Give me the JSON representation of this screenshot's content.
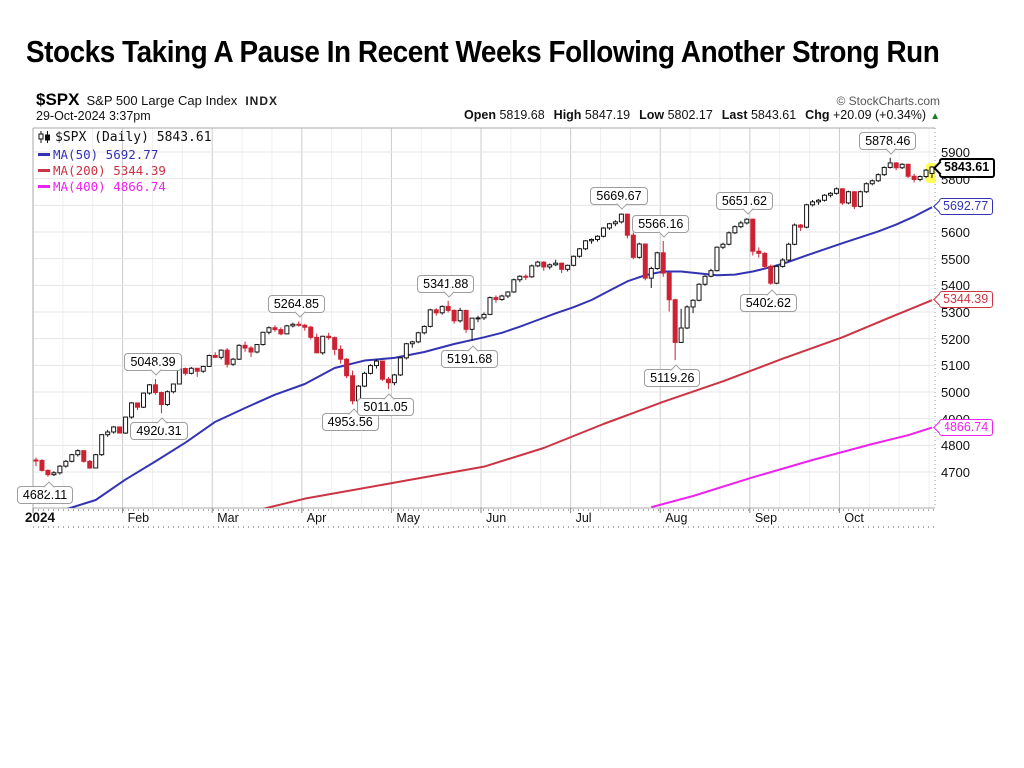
{
  "slide": {
    "title": "Stocks Taking A Pause In Recent Weeks Following Another Strong Run"
  },
  "chart": {
    "symbol": "$SPX",
    "name": "S&P 500 Large Cap Index",
    "exchange": "INDX",
    "credit": "© StockCharts.com",
    "datetime": "29-Oct-2024 3:37pm",
    "quote": [
      {
        "label": "Open",
        "value": "5819.68"
      },
      {
        "label": "High",
        "value": "5847.19"
      },
      {
        "label": "Low",
        "value": "5802.17"
      },
      {
        "label": "Last",
        "value": "5843.61"
      },
      {
        "label": "Chg",
        "value": "+20.09 (+0.34%)"
      }
    ],
    "change_arrow": "▲",
    "change_color": "#1e7a1e",
    "legend": {
      "main": "$SPX (Daily) 5843.61"
    }
  },
  "chart_data": {
    "type": "candlestick",
    "title": "$SPX (Daily)",
    "last": 5843.61,
    "ylim": [
      4565,
      5990
    ],
    "y_ticks": [
      5900,
      5800,
      5700,
      5600,
      5500,
      5400,
      5300,
      5200,
      5100,
      5000,
      4900,
      4800,
      4700
    ],
    "x_ticks": [
      {
        "label": "2024",
        "index": 0,
        "year": true
      },
      {
        "label": "Feb",
        "index": 15
      },
      {
        "label": "Mar",
        "index": 30
      },
      {
        "label": "Apr",
        "index": 45
      },
      {
        "label": "May",
        "index": 60
      },
      {
        "label": "Jun",
        "index": 75
      },
      {
        "label": "Jul",
        "index": 90
      },
      {
        "label": "Aug",
        "index": 105
      },
      {
        "label": "Sep",
        "index": 120
      },
      {
        "label": "Oct",
        "index": 135
      }
    ],
    "candles": [
      [
        4745,
        4754,
        4722,
        4743
      ],
      [
        4743,
        4748,
        4702,
        4706
      ],
      [
        4706,
        4710,
        4682.11,
        4690
      ],
      [
        4690,
        4703,
        4685,
        4697
      ],
      [
        4697,
        4726,
        4690,
        4722
      ],
      [
        4722,
        4745,
        4716,
        4740
      ],
      [
        4740,
        4768,
        4736,
        4765
      ],
      [
        4765,
        4785,
        4758,
        4780
      ],
      [
        4780,
        4782,
        4735,
        4740
      ],
      [
        4740,
        4745,
        4712,
        4715
      ],
      [
        4715,
        4768,
        4714,
        4765
      ],
      [
        4765,
        4842,
        4760,
        4840
      ],
      [
        4840,
        4858,
        4832,
        4850
      ],
      [
        4850,
        4872,
        4844,
        4869
      ],
      [
        4869,
        4870,
        4845,
        4846
      ],
      [
        4846,
        4908,
        4843,
        4906
      ],
      [
        4906,
        4962,
        4900,
        4959
      ],
      [
        4959,
        4960,
        4932,
        4943
      ],
      [
        4943,
        4998,
        4940,
        4996
      ],
      [
        4996,
        5030,
        4990,
        5027
      ],
      [
        5027,
        5048.39,
        4990,
        4998
      ],
      [
        4998,
        5002,
        4920.31,
        4953
      ],
      [
        4953,
        5006,
        4948,
        5001
      ],
      [
        5001,
        5032,
        4995,
        5030
      ],
      [
        5030,
        5090,
        5028,
        5088
      ],
      [
        5088,
        5092,
        5062,
        5070
      ],
      [
        5070,
        5094,
        5066,
        5089
      ],
      [
        5089,
        5090,
        5057,
        5078
      ],
      [
        5078,
        5098,
        5072,
        5096
      ],
      [
        5096,
        5140,
        5094,
        5137
      ],
      [
        5137,
        5149,
        5127,
        5130
      ],
      [
        5130,
        5160,
        5122,
        5157
      ],
      [
        5157,
        5165,
        5092,
        5104
      ],
      [
        5104,
        5128,
        5098,
        5123
      ],
      [
        5123,
        5179,
        5120,
        5175
      ],
      [
        5175,
        5189,
        5151,
        5165
      ],
      [
        5165,
        5172,
        5131,
        5150
      ],
      [
        5150,
        5180,
        5145,
        5178
      ],
      [
        5178,
        5226,
        5174,
        5224
      ],
      [
        5224,
        5246,
        5216,
        5241
      ],
      [
        5241,
        5250,
        5226,
        5234
      ],
      [
        5234,
        5242,
        5213,
        5218
      ],
      [
        5218,
        5252,
        5216,
        5248
      ],
      [
        5248,
        5260,
        5242,
        5254
      ],
      [
        5254,
        5264.85,
        5245,
        5250
      ],
      [
        5250,
        5256,
        5230,
        5243
      ],
      [
        5243,
        5248,
        5197,
        5205
      ],
      [
        5205,
        5219,
        5146,
        5147
      ],
      [
        5147,
        5211,
        5140,
        5209
      ],
      [
        5209,
        5222,
        5196,
        5204
      ],
      [
        5204,
        5208,
        5138,
        5160
      ],
      [
        5160,
        5175,
        5107,
        5123
      ],
      [
        5123,
        5127,
        5052,
        5061
      ],
      [
        5061,
        5080,
        4953.56,
        4967
      ],
      [
        4967,
        5026,
        4960,
        5022
      ],
      [
        5022,
        5076,
        5018,
        5070
      ],
      [
        5070,
        5104,
        5066,
        5099
      ],
      [
        5099,
        5123,
        5088,
        5116
      ],
      [
        5116,
        5118,
        5042,
        5048
      ],
      [
        5048,
        5056,
        5011.05,
        5035
      ],
      [
        5035,
        5068,
        5025,
        5064
      ],
      [
        5064,
        5132,
        5060,
        5128
      ],
      [
        5128,
        5184,
        5122,
        5181
      ],
      [
        5181,
        5192,
        5166,
        5188
      ],
      [
        5188,
        5226,
        5183,
        5222
      ],
      [
        5222,
        5250,
        5216,
        5246
      ],
      [
        5246,
        5312,
        5242,
        5308
      ],
      [
        5308,
        5314,
        5286,
        5297
      ],
      [
        5297,
        5325,
        5290,
        5321
      ],
      [
        5321,
        5341.88,
        5298,
        5306
      ],
      [
        5306,
        5310,
        5256,
        5267
      ],
      [
        5267,
        5316,
        5260,
        5306
      ],
      [
        5306,
        5308,
        5222,
        5235
      ],
      [
        5235,
        5245,
        5191.68,
        5277
      ],
      [
        5277,
        5286,
        5262,
        5278
      ],
      [
        5278,
        5298,
        5270,
        5291
      ],
      [
        5291,
        5358,
        5288,
        5354
      ],
      [
        5354,
        5362,
        5335,
        5347
      ],
      [
        5347,
        5365,
        5342,
        5360
      ],
      [
        5360,
        5378,
        5352,
        5375
      ],
      [
        5375,
        5425,
        5372,
        5421
      ],
      [
        5421,
        5438,
        5412,
        5434
      ],
      [
        5434,
        5441,
        5420,
        5432
      ],
      [
        5432,
        5478,
        5428,
        5473
      ],
      [
        5473,
        5492,
        5468,
        5487
      ],
      [
        5487,
        5490,
        5455,
        5469
      ],
      [
        5469,
        5482,
        5460,
        5477
      ],
      [
        5477,
        5496,
        5472,
        5483
      ],
      [
        5483,
        5486,
        5446,
        5460
      ],
      [
        5460,
        5478,
        5452,
        5475
      ],
      [
        5475,
        5512,
        5471,
        5509
      ],
      [
        5509,
        5540,
        5504,
        5537
      ],
      [
        5537,
        5570,
        5532,
        5567
      ],
      [
        5567,
        5576,
        5556,
        5572
      ],
      [
        5572,
        5588,
        5564,
        5584
      ],
      [
        5584,
        5618,
        5580,
        5615
      ],
      [
        5615,
        5634,
        5608,
        5631
      ],
      [
        5631,
        5644,
        5622,
        5638
      ],
      [
        5638,
        5669.67,
        5632,
        5667
      ],
      [
        5667,
        5668,
        5576,
        5588
      ],
      [
        5588,
        5598,
        5498,
        5505
      ],
      [
        5505,
        5560,
        5500,
        5555
      ],
      [
        5555,
        5556,
        5419,
        5427
      ],
      [
        5427,
        5470,
        5390,
        5463
      ],
      [
        5463,
        5526,
        5458,
        5522
      ],
      [
        5522,
        5566.16,
        5432,
        5446
      ],
      [
        5446,
        5450,
        5302,
        5346
      ],
      [
        5346,
        5350,
        5119.26,
        5186
      ],
      [
        5186,
        5312,
        5184,
        5240
      ],
      [
        5240,
        5325,
        5236,
        5319
      ],
      [
        5319,
        5348,
        5296,
        5344
      ],
      [
        5344,
        5408,
        5340,
        5404
      ],
      [
        5404,
        5438,
        5398,
        5434
      ],
      [
        5434,
        5462,
        5430,
        5455
      ],
      [
        5455,
        5546,
        5452,
        5543
      ],
      [
        5543,
        5560,
        5536,
        5554
      ],
      [
        5554,
        5602,
        5550,
        5597
      ],
      [
        5597,
        5625,
        5592,
        5620
      ],
      [
        5620,
        5642,
        5614,
        5634
      ],
      [
        5634,
        5651.62,
        5628,
        5648
      ],
      [
        5648,
        5650,
        5512,
        5528
      ],
      [
        5528,
        5542,
        5504,
        5520
      ],
      [
        5520,
        5524,
        5462,
        5471
      ],
      [
        5471,
        5478,
        5402.62,
        5408
      ],
      [
        5408,
        5476,
        5404,
        5471
      ],
      [
        5471,
        5502,
        5466,
        5495
      ],
      [
        5495,
        5560,
        5490,
        5554
      ],
      [
        5554,
        5632,
        5550,
        5626
      ],
      [
        5626,
        5630,
        5604,
        5618
      ],
      [
        5618,
        5706,
        5614,
        5702
      ],
      [
        5702,
        5720,
        5696,
        5713
      ],
      [
        5713,
        5724,
        5702,
        5719
      ],
      [
        5719,
        5742,
        5714,
        5738
      ],
      [
        5738,
        5750,
        5730,
        5745
      ],
      [
        5745,
        5767,
        5740,
        5762
      ],
      [
        5762,
        5764,
        5702,
        5709
      ],
      [
        5709,
        5755,
        5704,
        5751
      ],
      [
        5751,
        5753,
        5686,
        5696
      ],
      [
        5696,
        5755,
        5692,
        5751
      ],
      [
        5751,
        5786,
        5746,
        5781
      ],
      [
        5781,
        5797,
        5775,
        5792
      ],
      [
        5792,
        5820,
        5788,
        5815
      ],
      [
        5815,
        5846,
        5810,
        5842
      ],
      [
        5842,
        5878.46,
        5838,
        5859
      ],
      [
        5859,
        5862,
        5832,
        5841
      ],
      [
        5841,
        5858,
        5836,
        5854
      ],
      [
        5854,
        5856,
        5802,
        5809
      ],
      [
        5809,
        5818,
        5786,
        5797
      ],
      [
        5797,
        5812,
        5790,
        5808
      ],
      [
        5808,
        5836,
        5802,
        5832
      ],
      [
        5819.68,
        5847.19,
        5802.17,
        5843.61
      ]
    ],
    "moving_averages": [
      {
        "name": "MA(50)",
        "value": 5692.77,
        "color": "#3333b4",
        "points": [
          [
            0,
            4545
          ],
          [
            5,
            4560
          ],
          [
            10,
            4595
          ],
          [
            15,
            4672
          ],
          [
            20,
            4740
          ],
          [
            25,
            4810
          ],
          [
            30,
            4888
          ],
          [
            35,
            4940
          ],
          [
            40,
            4990
          ],
          [
            45,
            5030
          ],
          [
            50,
            5090
          ],
          [
            55,
            5118
          ],
          [
            60,
            5128
          ],
          [
            65,
            5150
          ],
          [
            70,
            5180
          ],
          [
            75,
            5205
          ],
          [
            78,
            5222
          ],
          [
            81,
            5245
          ],
          [
            84,
            5270
          ],
          [
            87,
            5295
          ],
          [
            90,
            5318
          ],
          [
            93,
            5345
          ],
          [
            96,
            5380
          ],
          [
            99,
            5415
          ],
          [
            102,
            5438
          ],
          [
            105,
            5452
          ],
          [
            108,
            5452
          ],
          [
            111,
            5445
          ],
          [
            114,
            5438
          ],
          [
            117,
            5440
          ],
          [
            120,
            5452
          ],
          [
            123,
            5468
          ],
          [
            126,
            5488
          ],
          [
            129,
            5512
          ],
          [
            132,
            5535
          ],
          [
            135,
            5558
          ],
          [
            138,
            5580
          ],
          [
            141,
            5602
          ],
          [
            144,
            5628
          ],
          [
            147,
            5658
          ],
          [
            150,
            5692.77
          ]
        ]
      },
      {
        "name": "MA(200)",
        "value": 5344.39,
        "color": "#cc3344",
        "points": [
          [
            38,
            4562
          ],
          [
            45,
            4600
          ],
          [
            60,
            4660
          ],
          [
            75,
            4720
          ],
          [
            85,
            4790
          ],
          [
            95,
            4880
          ],
          [
            105,
            4963
          ],
          [
            115,
            5040
          ],
          [
            125,
            5125
          ],
          [
            135,
            5205
          ],
          [
            143,
            5280
          ],
          [
            150,
            5344.39
          ]
        ]
      },
      {
        "name": "MA(400)",
        "value": 4866.74,
        "color": "#ee22ee",
        "points": [
          [
            103,
            4568
          ],
          [
            110,
            4610
          ],
          [
            120,
            4680
          ],
          [
            130,
            4745
          ],
          [
            140,
            4805
          ],
          [
            146,
            4838
          ],
          [
            150,
            4866.74
          ]
        ]
      }
    ],
    "annotations": [
      {
        "text": "4682.11",
        "index": 2,
        "price": 4682.11,
        "side": "below"
      },
      {
        "text": "4920.31",
        "index": 21,
        "price": 4920.31,
        "side": "below"
      },
      {
        "text": "5048.39",
        "index": 20,
        "price": 5048.39,
        "side": "above"
      },
      {
        "text": "5264.85",
        "index": 44,
        "price": 5264.85,
        "side": "above"
      },
      {
        "text": "4953.56",
        "index": 53,
        "price": 4953.56,
        "side": "below"
      },
      {
        "text": "5011.05",
        "index": 59,
        "price": 5011.05,
        "side": "below"
      },
      {
        "text": "5341.88",
        "index": 69,
        "price": 5341.88,
        "side": "above"
      },
      {
        "text": "5191.68",
        "index": 73,
        "price": 5191.68,
        "side": "below"
      },
      {
        "text": "5669.67",
        "index": 98,
        "price": 5669.67,
        "side": "above"
      },
      {
        "text": "5566.16",
        "index": 105,
        "price": 5566.16,
        "side": "above"
      },
      {
        "text": "5119.26",
        "index": 107,
        "price": 5119.26,
        "side": "below"
      },
      {
        "text": "5651.62",
        "index": 119,
        "price": 5651.62,
        "side": "above"
      },
      {
        "text": "5402.62",
        "index": 123,
        "price": 5402.62,
        "side": "below"
      },
      {
        "text": "5878.46",
        "index": 143,
        "price": 5878.46,
        "side": "above"
      }
    ],
    "price_tags": [
      {
        "text": "5843.61",
        "price": 5843.61,
        "color": "#000000",
        "bold": true
      },
      {
        "text": "5692.77",
        "price": 5692.77,
        "color": "#3333b4",
        "bold": false
      },
      {
        "text": "5344.39",
        "price": 5344.39,
        "color": "#cc3344",
        "bold": false
      },
      {
        "text": "4866.74",
        "price": 4866.74,
        "color": "#ee22ee",
        "bold": false
      }
    ],
    "last_candle_highlight": "#ffff55",
    "colors": {
      "up_stroke": "#141414",
      "up_fill": "#ffffff",
      "down": "#cc2233",
      "grid": "#e6e6e6",
      "week_grid": "#efefef",
      "month_grid": "#cbcbcb",
      "border": "#a8a8a8"
    }
  }
}
